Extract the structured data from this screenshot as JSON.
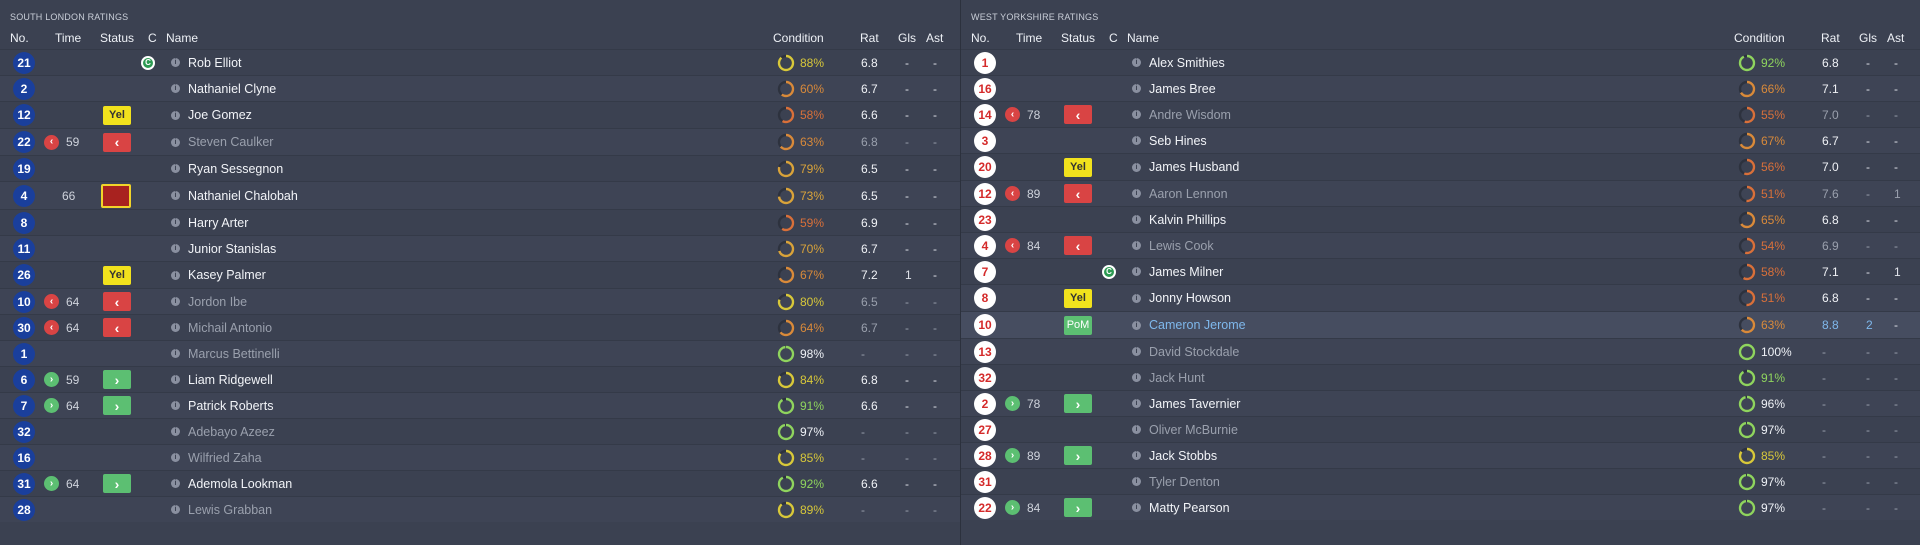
{
  "colors": {
    "bg": "#3b4151",
    "home_shirt": "#1a3f9c",
    "away_shirt": "#ffffff",
    "yellow": "#f1e21d",
    "sub_off": "#d94444",
    "sub_on": "#5cbf72",
    "pom_name": "#7fb8ec"
  },
  "headers": {
    "no": "No.",
    "time": "Time",
    "status": "Status",
    "c": "C",
    "name": "Name",
    "condition": "Condition",
    "rat": "Rat",
    "gls": "Gls",
    "ast": "Ast"
  },
  "home": {
    "title": "SOUTH LONDON RATINGS",
    "players": [
      {
        "no": "21",
        "time": "",
        "sub": "",
        "status": "",
        "captain": true,
        "name": "Rob Elliot",
        "played": true,
        "cond": 88,
        "rat": "6.8",
        "gls": "-",
        "ast": "-"
      },
      {
        "no": "2",
        "time": "",
        "sub": "",
        "status": "",
        "captain": false,
        "name": "Nathaniel Clyne",
        "played": true,
        "cond": 60,
        "rat": "6.7",
        "gls": "-",
        "ast": "-"
      },
      {
        "no": "12",
        "time": "",
        "sub": "",
        "status": "Yel",
        "captain": false,
        "name": "Joe Gomez",
        "played": true,
        "cond": 58,
        "rat": "6.6",
        "gls": "-",
        "ast": "-"
      },
      {
        "no": "22",
        "time": "59",
        "sub": "off",
        "status": "off",
        "captain": false,
        "name": "Steven Caulker",
        "played": false,
        "cond": 63,
        "rat": "6.8",
        "gls": "-",
        "ast": "-"
      },
      {
        "no": "19",
        "time": "",
        "sub": "",
        "status": "",
        "captain": false,
        "name": "Ryan Sessegnon",
        "played": true,
        "cond": 79,
        "rat": "6.5",
        "gls": "-",
        "ast": "-"
      },
      {
        "no": "4",
        "time": "66",
        "sub": "",
        "status": "red",
        "captain": false,
        "name": "Nathaniel Chalobah",
        "played": true,
        "cond": 73,
        "rat": "6.5",
        "gls": "-",
        "ast": "-"
      },
      {
        "no": "8",
        "time": "",
        "sub": "",
        "status": "",
        "captain": false,
        "name": "Harry Arter",
        "played": true,
        "cond": 59,
        "rat": "6.9",
        "gls": "-",
        "ast": "-"
      },
      {
        "no": "11",
        "time": "",
        "sub": "",
        "status": "",
        "captain": false,
        "name": "Junior Stanislas",
        "played": true,
        "cond": 70,
        "rat": "6.7",
        "gls": "-",
        "ast": "-"
      },
      {
        "no": "26",
        "time": "",
        "sub": "",
        "status": "Yel",
        "captain": false,
        "name": "Kasey Palmer",
        "played": true,
        "cond": 67,
        "rat": "7.2",
        "gls": "1",
        "ast": "-"
      },
      {
        "no": "10",
        "time": "64",
        "sub": "off",
        "status": "off",
        "captain": false,
        "name": "Jordon Ibe",
        "played": false,
        "cond": 80,
        "rat": "6.5",
        "gls": "-",
        "ast": "-"
      },
      {
        "no": "30",
        "time": "64",
        "sub": "off",
        "status": "off",
        "captain": false,
        "name": "Michail Antonio",
        "played": false,
        "cond": 64,
        "rat": "6.7",
        "gls": "-",
        "ast": "-"
      },
      {
        "no": "1",
        "time": "",
        "sub": "",
        "status": "",
        "captain": false,
        "name": "Marcus Bettinelli",
        "played": false,
        "cond": 98,
        "rat": "-",
        "gls": "-",
        "ast": "-"
      },
      {
        "no": "6",
        "time": "59",
        "sub": "on",
        "status": "on",
        "captain": false,
        "name": "Liam Ridgewell",
        "played": true,
        "cond": 84,
        "rat": "6.8",
        "gls": "-",
        "ast": "-"
      },
      {
        "no": "7",
        "time": "64",
        "sub": "on",
        "status": "on",
        "captain": false,
        "name": "Patrick Roberts",
        "played": true,
        "cond": 91,
        "rat": "6.6",
        "gls": "-",
        "ast": "-"
      },
      {
        "no": "32",
        "time": "",
        "sub": "",
        "status": "",
        "captain": false,
        "name": "Adebayo Azeez",
        "played": false,
        "cond": 97,
        "rat": "-",
        "gls": "-",
        "ast": "-"
      },
      {
        "no": "16",
        "time": "",
        "sub": "",
        "status": "",
        "captain": false,
        "name": "Wilfried Zaha",
        "played": false,
        "cond": 85,
        "rat": "-",
        "gls": "-",
        "ast": "-"
      },
      {
        "no": "31",
        "time": "64",
        "sub": "on",
        "status": "on",
        "captain": false,
        "name": "Ademola Lookman",
        "played": true,
        "cond": 92,
        "rat": "6.6",
        "gls": "-",
        "ast": "-"
      },
      {
        "no": "28",
        "time": "",
        "sub": "",
        "status": "",
        "captain": false,
        "name": "Lewis Grabban",
        "played": false,
        "cond": 89,
        "rat": "-",
        "gls": "-",
        "ast": "-"
      }
    ]
  },
  "away": {
    "title": "WEST YORKSHIRE RATINGS",
    "players": [
      {
        "no": "1",
        "time": "",
        "sub": "",
        "status": "",
        "captain": false,
        "name": "Alex Smithies",
        "played": true,
        "cond": 92,
        "rat": "6.8",
        "gls": "-",
        "ast": "-"
      },
      {
        "no": "16",
        "time": "",
        "sub": "",
        "status": "",
        "captain": false,
        "name": "James Bree",
        "played": true,
        "cond": 66,
        "rat": "7.1",
        "gls": "-",
        "ast": "-"
      },
      {
        "no": "14",
        "time": "78",
        "sub": "off",
        "status": "off",
        "captain": false,
        "name": "Andre Wisdom",
        "played": false,
        "cond": 55,
        "rat": "7.0",
        "gls": "-",
        "ast": "-"
      },
      {
        "no": "3",
        "time": "",
        "sub": "",
        "status": "",
        "captain": false,
        "name": "Seb Hines",
        "played": true,
        "cond": 67,
        "rat": "6.7",
        "gls": "-",
        "ast": "-"
      },
      {
        "no": "20",
        "time": "",
        "sub": "",
        "status": "Yel",
        "captain": false,
        "name": "James Husband",
        "played": true,
        "cond": 56,
        "rat": "7.0",
        "gls": "-",
        "ast": "-"
      },
      {
        "no": "12",
        "time": "89",
        "sub": "off",
        "status": "off",
        "captain": false,
        "name": "Aaron Lennon",
        "played": false,
        "cond": 51,
        "rat": "7.6",
        "gls": "-",
        "ast": "1"
      },
      {
        "no": "23",
        "time": "",
        "sub": "",
        "status": "",
        "captain": false,
        "name": "Kalvin Phillips",
        "played": true,
        "cond": 65,
        "rat": "6.8",
        "gls": "-",
        "ast": "-"
      },
      {
        "no": "4",
        "time": "84",
        "sub": "off",
        "status": "off",
        "captain": false,
        "name": "Lewis Cook",
        "played": false,
        "cond": 54,
        "rat": "6.9",
        "gls": "-",
        "ast": "-"
      },
      {
        "no": "7",
        "time": "",
        "sub": "",
        "status": "",
        "captain": true,
        "name": "James Milner",
        "played": true,
        "cond": 58,
        "rat": "7.1",
        "gls": "-",
        "ast": "1"
      },
      {
        "no": "8",
        "time": "",
        "sub": "",
        "status": "Yel",
        "captain": false,
        "name": "Jonny Howson",
        "played": true,
        "cond": 51,
        "rat": "6.8",
        "gls": "-",
        "ast": "-"
      },
      {
        "no": "10",
        "time": "",
        "sub": "",
        "status": "PoM",
        "captain": false,
        "name": "Cameron Jerome",
        "played": true,
        "cond": 63,
        "rat": "8.8",
        "gls": "2",
        "ast": "-"
      },
      {
        "no": "13",
        "time": "",
        "sub": "",
        "status": "",
        "captain": false,
        "name": "David Stockdale",
        "played": false,
        "cond": 100,
        "rat": "-",
        "gls": "-",
        "ast": "-"
      },
      {
        "no": "32",
        "time": "",
        "sub": "",
        "status": "",
        "captain": false,
        "name": "Jack Hunt",
        "played": false,
        "cond": 91,
        "rat": "-",
        "gls": "-",
        "ast": "-"
      },
      {
        "no": "2",
        "time": "78",
        "sub": "on",
        "status": "on",
        "captain": false,
        "name": "James Tavernier",
        "played": true,
        "cond": 96,
        "rat": "-",
        "gls": "-",
        "ast": "-"
      },
      {
        "no": "27",
        "time": "",
        "sub": "",
        "status": "",
        "captain": false,
        "name": "Oliver McBurnie",
        "played": false,
        "cond": 97,
        "rat": "-",
        "gls": "-",
        "ast": "-"
      },
      {
        "no": "28",
        "time": "89",
        "sub": "on",
        "status": "on",
        "captain": false,
        "name": "Jack Stobbs",
        "played": true,
        "cond": 85,
        "rat": "-",
        "gls": "-",
        "ast": "-"
      },
      {
        "no": "31",
        "time": "",
        "sub": "",
        "status": "",
        "captain": false,
        "name": "Tyler Denton",
        "played": false,
        "cond": 97,
        "rat": "-",
        "gls": "-",
        "ast": "-"
      },
      {
        "no": "22",
        "time": "84",
        "sub": "on",
        "status": "on",
        "captain": false,
        "name": "Matty Pearson",
        "played": true,
        "cond": 97,
        "rat": "-",
        "gls": "-",
        "ast": "-"
      }
    ]
  }
}
